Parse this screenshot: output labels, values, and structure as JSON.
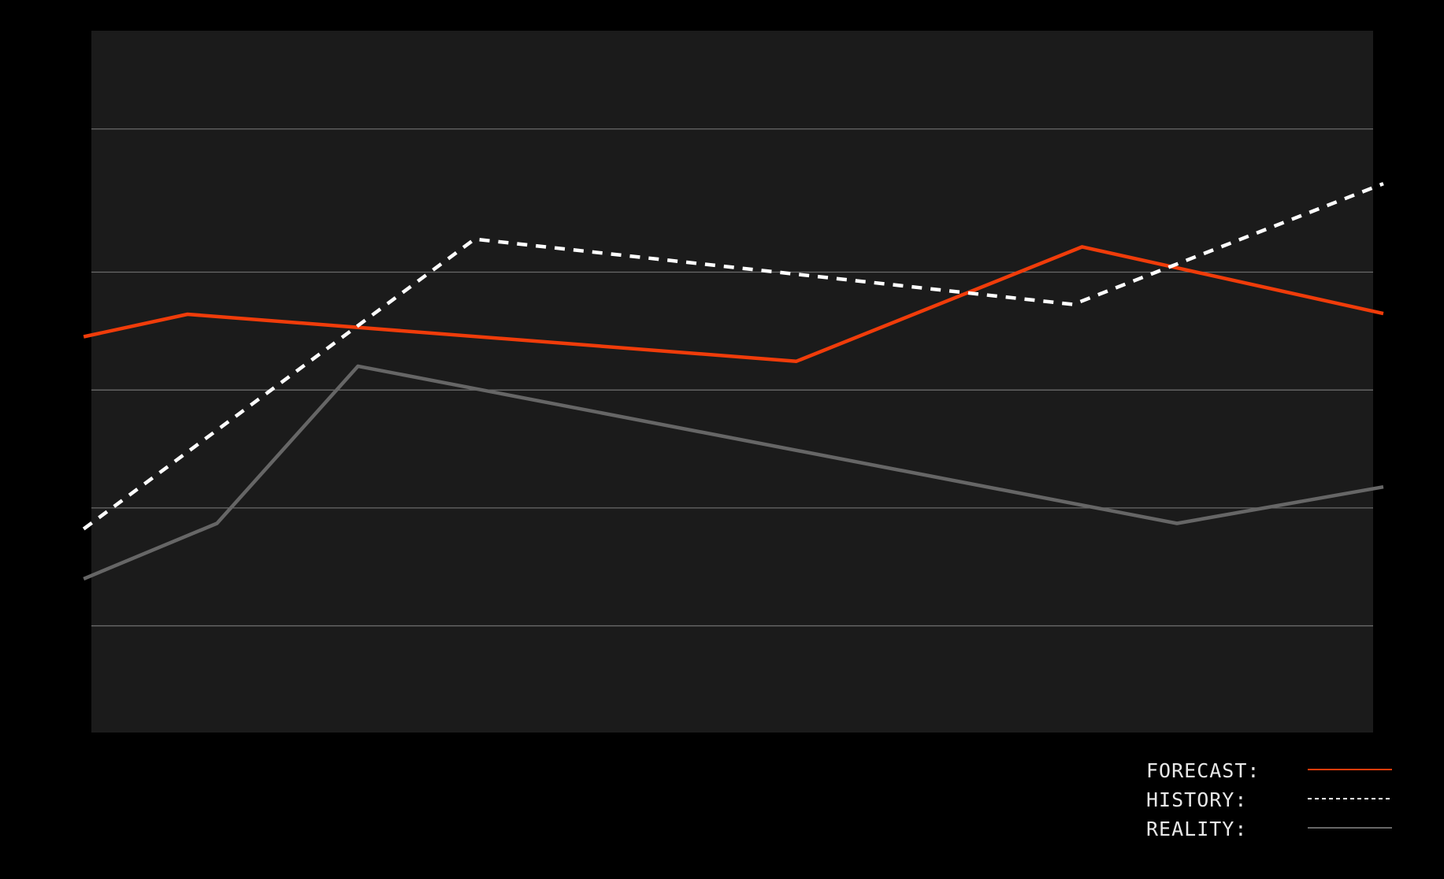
{
  "chart_data": {
    "type": "line",
    "xlim": [
      0,
      100
    ],
    "ylim": [
      0,
      100
    ],
    "yticks": [
      15.2,
      32,
      48.8,
      65.6,
      86
    ],
    "grid": true,
    "legend": "bottom-right",
    "series": [
      {
        "name": "FORECAST:",
        "color": "#f03c0a",
        "line_style": "solid",
        "x": [
          -0.6,
          7.5,
          55.0,
          77.3,
          100.8
        ],
        "values": [
          56.4,
          59.6,
          52.9,
          69.2,
          59.7
        ]
      },
      {
        "name": "HISTORY:",
        "color": "#ffffff",
        "line_style": "dashed",
        "x": [
          -0.6,
          29.9,
          76.6,
          100.8
        ],
        "values": [
          29.0,
          70.3,
          61.0,
          78.2
        ]
      },
      {
        "name": "REALITY:",
        "color": "#666666",
        "line_style": "solid",
        "x": [
          -0.6,
          9.8,
          20.8,
          84.7,
          100.8
        ],
        "values": [
          21.9,
          29.8,
          52.2,
          29.8,
          35.0
        ]
      }
    ]
  }
}
